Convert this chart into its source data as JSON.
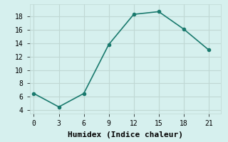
{
  "x": [
    0,
    3,
    6,
    9,
    12,
    15,
    18,
    21
  ],
  "y": [
    6.5,
    4.5,
    6.5,
    13.8,
    18.3,
    18.7,
    16.1,
    13.0
  ],
  "xlabel": "Humidex (Indice chaleur)",
  "xlim": [
    -0.5,
    22.5
  ],
  "ylim": [
    3.5,
    19.8
  ],
  "yticks": [
    4,
    6,
    8,
    10,
    12,
    14,
    16,
    18
  ],
  "xticks": [
    0,
    3,
    6,
    9,
    12,
    15,
    18,
    21
  ],
  "line_color": "#1a7a6e",
  "bg_color": "#d6f0ee",
  "grid_color": "#c0d8d4",
  "marker": "o",
  "marker_size": 3,
  "linewidth": 1.2,
  "xlabel_fontsize": 8,
  "tick_fontsize": 7
}
